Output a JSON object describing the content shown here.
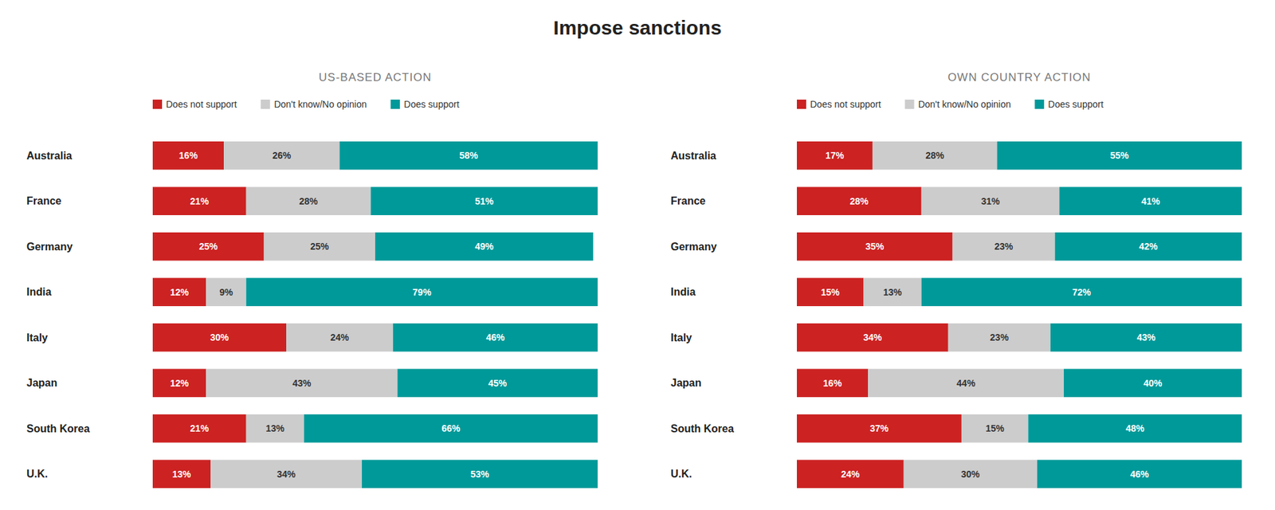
{
  "title": "Impose sanctions",
  "chart_data": [
    {
      "type": "bar",
      "orientation": "horizontal",
      "stacked": true,
      "data_labels": true,
      "legend": "top",
      "title": "US-BASED ACTION",
      "categories": [
        "Australia",
        "France",
        "Germany",
        "India",
        "Italy",
        "Japan",
        "South Korea",
        "U.K."
      ],
      "xlim": [
        0,
        100
      ],
      "series": [
        {
          "name": "Does not support",
          "color": "#cc2222",
          "values": [
            16,
            21,
            25,
            12,
            30,
            12,
            21,
            13
          ],
          "value_labels": [
            "16%",
            "21%",
            "25%",
            "12%",
            "30%",
            "12%",
            "21%",
            "13%"
          ]
        },
        {
          "name": "Don't know/No opinion",
          "color": "#cccccc",
          "values": [
            26,
            28,
            25,
            9,
            24,
            43,
            13,
            34
          ],
          "value_labels": [
            "26%",
            "28%",
            "25%",
            "9%",
            "24%",
            "43%",
            "13%",
            "34%"
          ]
        },
        {
          "name": "Does support",
          "color": "#009999",
          "values": [
            58,
            51,
            49,
            79,
            46,
            45,
            66,
            53
          ],
          "value_labels": [
            "58%",
            "51%",
            "49%",
            "79%",
            "46%",
            "45%",
            "66%",
            "53%"
          ]
        }
      ]
    },
    {
      "type": "bar",
      "orientation": "horizontal",
      "stacked": true,
      "data_labels": true,
      "legend": "top",
      "title": "OWN COUNTRY ACTION",
      "categories": [
        "Australia",
        "France",
        "Germany",
        "India",
        "Italy",
        "Japan",
        "South Korea",
        "U.K."
      ],
      "xlim": [
        0,
        100
      ],
      "series": [
        {
          "name": "Does not support",
          "color": "#cc2222",
          "values": [
            17,
            28,
            35,
            15,
            34,
            16,
            37,
            24
          ],
          "value_labels": [
            "17%",
            "28%",
            "35%",
            "15%",
            "34%",
            "16%",
            "37%",
            "24%"
          ]
        },
        {
          "name": "Don't know/No opinion",
          "color": "#cccccc",
          "values": [
            28,
            31,
            23,
            13,
            23,
            44,
            15,
            30
          ],
          "value_labels": [
            "28%",
            "31%",
            "23%",
            "13%",
            "23%",
            "44%",
            "15%",
            "30%"
          ]
        },
        {
          "name": "Does support",
          "color": "#009999",
          "values": [
            55,
            41,
            42,
            72,
            43,
            40,
            48,
            46
          ],
          "value_labels": [
            "55%",
            "41%",
            "42%",
            "72%",
            "43%",
            "40%",
            "48%",
            "46%"
          ]
        }
      ]
    }
  ]
}
